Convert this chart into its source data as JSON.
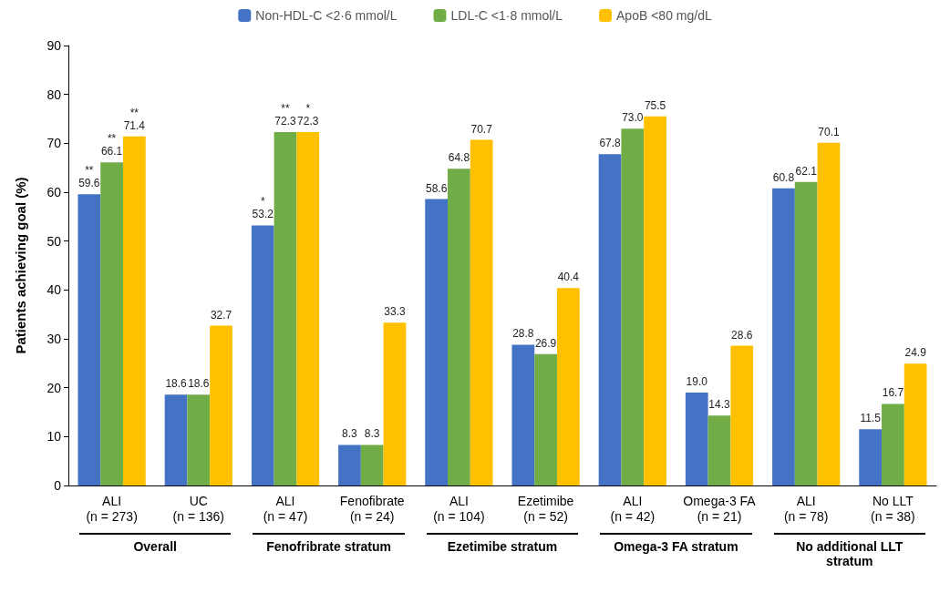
{
  "chart_data": {
    "type": "bar",
    "ylabel": "Patients achieving goal (%)",
    "categories": [
      "ALI\n(n = 273)",
      "UC\n(n = 136)",
      "ALI\n(n = 47)",
      "Fenofibrate\n(n = 24)",
      "ALI\n(n = 104)",
      "Ezetimibe\n(n = 52)",
      "ALI\n(n = 42)",
      "Omega-3 FA\n(n = 21)",
      "ALI\n(n = 78)",
      "No LLT\n(n = 38)"
    ],
    "series": [
      {
        "name": "Non-HDL-C <2·6 mmol/L",
        "color": "#4472c4",
        "values": [
          59.6,
          18.6,
          53.2,
          8.3,
          58.6,
          28.8,
          67.8,
          19.0,
          60.8,
          11.5
        ],
        "value_labels": [
          "**\n59.6",
          "18.6",
          "*\n53.2",
          "8.3",
          "58.6",
          "28.8",
          "67.8",
          "19.0",
          "60.8",
          "11.5"
        ]
      },
      {
        "name": "LDL-C <1·8 mmol/L",
        "color": "#70ad47",
        "values": [
          66.1,
          18.6,
          72.3,
          8.3,
          64.8,
          26.9,
          73.0,
          14.3,
          62.1,
          16.7
        ],
        "value_labels": [
          "**\n66.1",
          "18.6",
          "**\n72.3",
          "8.3",
          "64.8",
          "26.9",
          "73.0",
          "14.3",
          "62.1",
          "16.7"
        ]
      },
      {
        "name": "ApoB <80 mg/dL",
        "color": "#ffc000",
        "values": [
          71.4,
          32.7,
          72.3,
          33.3,
          70.7,
          40.4,
          75.5,
          28.6,
          70.1,
          24.9
        ],
        "value_labels": [
          "**\n71.4",
          "32.7",
          "*\n72.3",
          "33.3",
          "70.7",
          "40.4",
          "75.5",
          "28.6",
          "70.1",
          "24.9"
        ]
      }
    ],
    "ylim": [
      0,
      90
    ],
    "yticks": [
      0,
      10,
      20,
      30,
      40,
      50,
      60,
      70,
      80,
      90
    ],
    "grid": false,
    "legend": "top",
    "annotations": [
      "Overall",
      "Fenofribrate stratum",
      "Ezetimibe stratum",
      "Omega-3 FA stratum",
      "No additional LLT stratum"
    ]
  }
}
